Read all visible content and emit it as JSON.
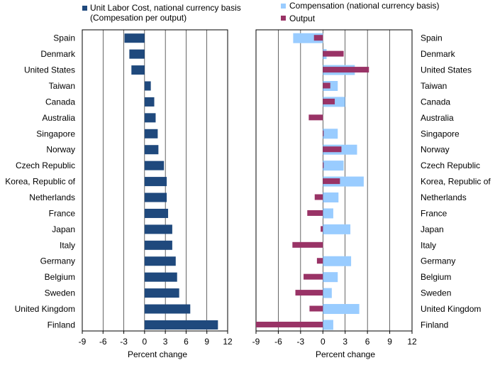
{
  "colors": {
    "ulc": "#1F497D",
    "compensation": "#99CCFF",
    "output": "#993366",
    "grid": "#000000"
  },
  "chart_data": [
    {
      "type": "bar",
      "orientation": "horizontal",
      "xlabel": "Percent change",
      "xlim": [
        -9,
        12
      ],
      "xticks": [
        -9,
        -6,
        -3,
        0,
        3,
        6,
        9,
        12
      ],
      "grid": true,
      "legend": "top",
      "categories": [
        "Spain",
        "Denmark",
        "United States",
        "Taiwan",
        "Canada",
        "Australia",
        "Singapore",
        "Norway",
        "Czech Republic",
        "Korea, Republic of",
        "Netherlands",
        "France",
        "Japan",
        "Italy",
        "Germany",
        "Belgium",
        "Sweden",
        "United Kingdom",
        "Finland"
      ],
      "series": [
        {
          "name": "Unit Labor Cost, national currency basis (Compesation per output)",
          "name_lines": [
            "Unit Labor Cost, national currency basis",
            "(Compesation per output)"
          ],
          "values": [
            -2.9,
            -2.2,
            -1.9,
            0.9,
            1.4,
            1.6,
            1.9,
            2.0,
            2.8,
            3.2,
            3.2,
            3.4,
            4.0,
            4.0,
            4.5,
            4.7,
            5.0,
            6.6,
            10.6
          ]
        }
      ]
    },
    {
      "type": "bar",
      "orientation": "horizontal",
      "xlabel": "Percent change",
      "xlim": [
        -9,
        12
      ],
      "xticks": [
        -9,
        -6,
        -3,
        0,
        3,
        6,
        9,
        12
      ],
      "grid": true,
      "legend": "top",
      "categories": [
        "Spain",
        "Denmark",
        "United States",
        "Taiwan",
        "Canada",
        "Australia",
        "Singapore",
        "Norway",
        "Czech Republic",
        "Korea, Republic of",
        "Netherlands",
        "France",
        "Japan",
        "Italy",
        "Germany",
        "Belgium",
        "Sweden",
        "United Kingdom",
        "Finland"
      ],
      "series": [
        {
          "name": "Compensation (national currency basis)",
          "values": [
            -4.0,
            0.5,
            4.3,
            2.0,
            3.0,
            0.0,
            2.0,
            4.6,
            2.8,
            5.5,
            2.1,
            1.4,
            3.7,
            0.0,
            3.8,
            2.0,
            1.2,
            4.9,
            1.4
          ]
        },
        {
          "name": "Output",
          "values": [
            -1.2,
            2.8,
            6.2,
            1.0,
            1.6,
            -1.9,
            0.1,
            2.5,
            0.1,
            2.3,
            -1.1,
            -2.1,
            -0.3,
            -4.1,
            -0.8,
            -2.6,
            -3.7,
            -1.8,
            -9.0
          ]
        }
      ]
    }
  ]
}
